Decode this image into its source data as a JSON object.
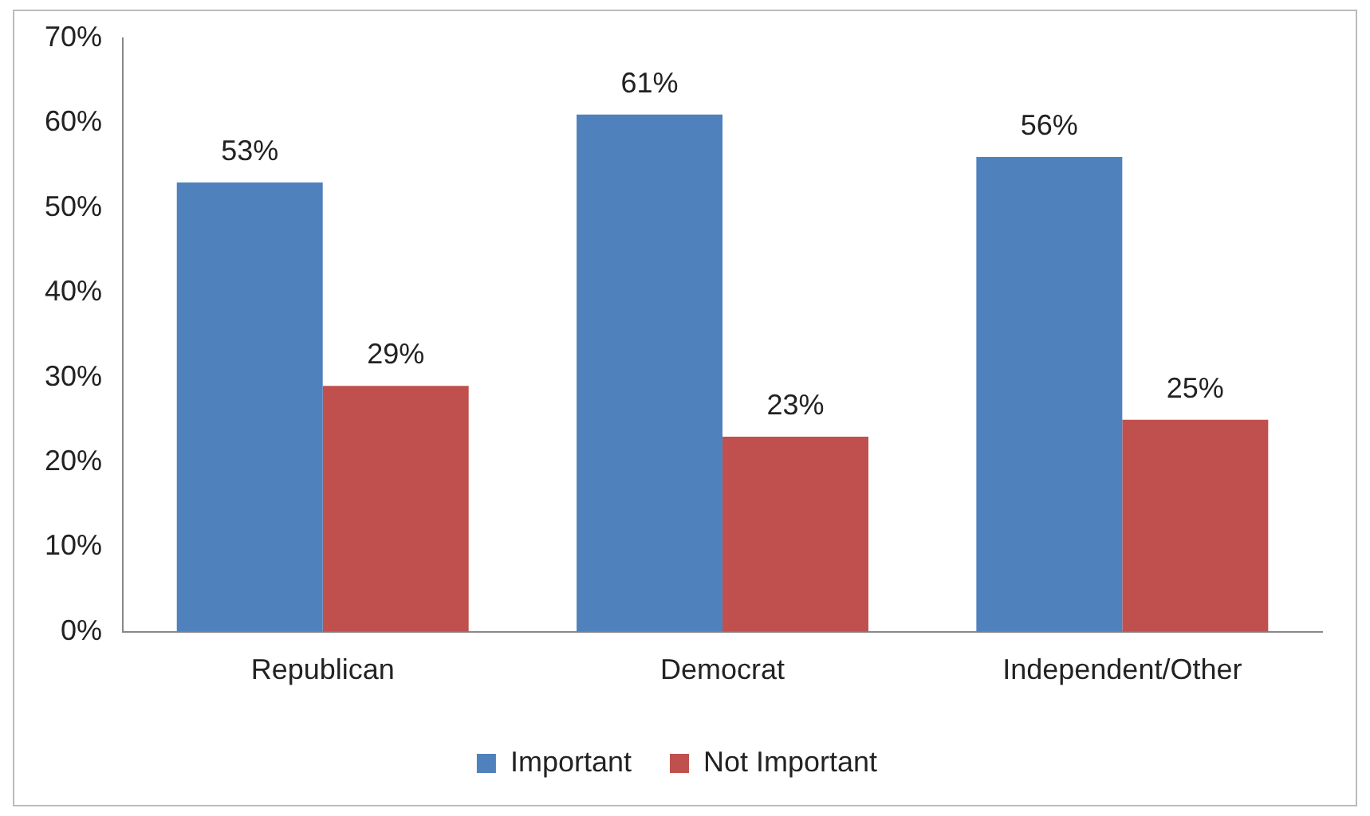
{
  "chart_data": {
    "type": "bar",
    "categories": [
      "Republican",
      "Democrat",
      "Independent/Other"
    ],
    "series": [
      {
        "name": "Important",
        "color": "#4f81bd",
        "values": [
          53,
          61,
          56
        ],
        "value_labels": [
          "53%",
          "61%",
          "56%"
        ]
      },
      {
        "name": "Not Important",
        "color": "#c0504d",
        "values": [
          29,
          23,
          25
        ],
        "value_labels": [
          "29%",
          "23%",
          "25%"
        ]
      }
    ],
    "ylim": [
      0,
      70
    ],
    "yticks": [
      {
        "value": 0,
        "label": "0%"
      },
      {
        "value": 10,
        "label": "10%"
      },
      {
        "value": 20,
        "label": "20%"
      },
      {
        "value": 30,
        "label": "30%"
      },
      {
        "value": 40,
        "label": "40%"
      },
      {
        "value": 50,
        "label": "50%"
      },
      {
        "value": 60,
        "label": "60%"
      },
      {
        "value": 70,
        "label": "70%"
      }
    ],
    "grid": false,
    "legend": "bottom"
  }
}
